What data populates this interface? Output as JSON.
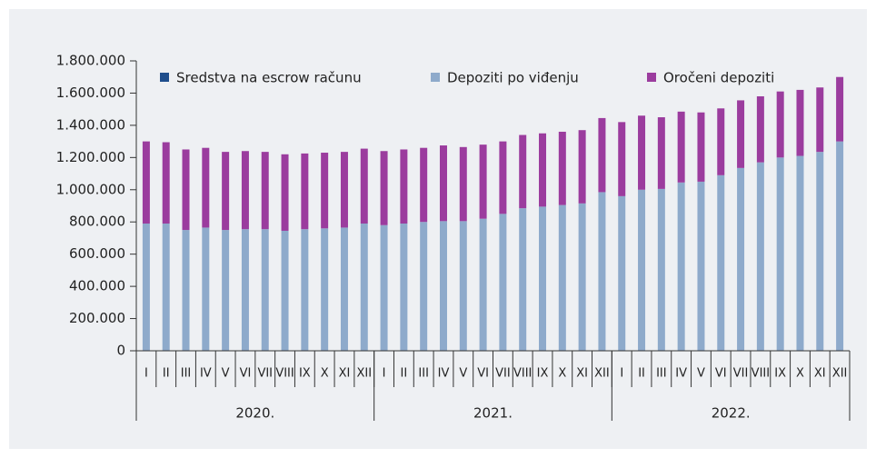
{
  "chart_data": {
    "type": "stacked_bar",
    "categories": [
      "I",
      "II",
      "III",
      "IV",
      "V",
      "VI",
      "VII",
      "VIII",
      "IX",
      "X",
      "XI",
      "XII",
      "I",
      "II",
      "III",
      "IV",
      "V",
      "VI",
      "VII",
      "VIII",
      "IX",
      "X",
      "XI",
      "XII",
      "I",
      "II",
      "III",
      "IV",
      "V",
      "VI",
      "VII",
      "VIII",
      "IX",
      "X",
      "XI",
      "XII"
    ],
    "groups": [
      "2020.",
      "2021.",
      "2022."
    ],
    "series": [
      {
        "name": "Sredstva na escrow računu",
        "color": "#1f4e8c",
        "values": [
          0,
          0,
          0,
          0,
          0,
          0,
          0,
          0,
          0,
          0,
          0,
          0,
          0,
          0,
          0,
          0,
          0,
          0,
          0,
          0,
          0,
          0,
          0,
          0,
          0,
          0,
          0,
          0,
          0,
          0,
          0,
          0,
          0,
          0,
          0,
          0
        ]
      },
      {
        "name": "Depoziti po viđenju",
        "color": "#8eaacb",
        "values": [
          790000,
          790000,
          750000,
          765000,
          750000,
          755000,
          755000,
          745000,
          755000,
          760000,
          765000,
          790000,
          780000,
          790000,
          800000,
          805000,
          805000,
          820000,
          850000,
          885000,
          895000,
          905000,
          915000,
          985000,
          960000,
          1000000,
          1005000,
          1045000,
          1050000,
          1090000,
          1135000,
          1170000,
          1200000,
          1210000,
          1235000,
          1300000
        ]
      },
      {
        "name": "Oročeni depoziti",
        "color": "#9b3c9e",
        "values": [
          510000,
          505000,
          500000,
          495000,
          485000,
          485000,
          480000,
          475000,
          470000,
          470000,
          470000,
          465000,
          460000,
          460000,
          460000,
          470000,
          460000,
          460000,
          450000,
          455000,
          455000,
          455000,
          455000,
          460000,
          460000,
          460000,
          445000,
          440000,
          430000,
          415000,
          420000,
          410000,
          410000,
          410000,
          400000,
          400000
        ]
      }
    ],
    "ylim": [
      0,
      1800000
    ],
    "yticks": [
      0,
      {
        "value": 200000,
        "label": "200.000"
      },
      {
        "value": 400000,
        "label": "400.000"
      },
      {
        "value": 600000,
        "label": "600.000"
      },
      {
        "value": 800000,
        "label": "800.000"
      },
      {
        "value": 1000000,
        "label": "1.000.000"
      },
      {
        "value": 1200000,
        "label": "1.200.000"
      },
      {
        "value": 1400000,
        "label": "1.400.000"
      },
      {
        "value": 1600000,
        "label": "1.600.000"
      },
      {
        "value": 1800000,
        "label": "1.800.000"
      }
    ],
    "legend": "top"
  }
}
